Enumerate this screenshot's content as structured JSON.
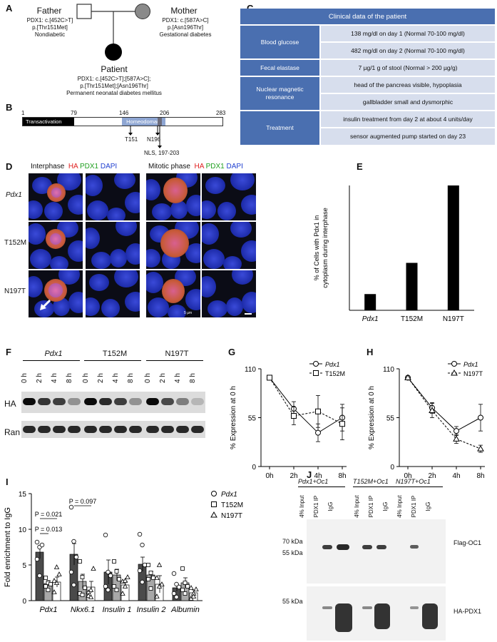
{
  "panelA": {
    "label": "A",
    "father": {
      "title": "Father",
      "lines": [
        "PDX1: c.[452C>T]",
        "p.[Thr151Met]",
        "Nondiabetic"
      ]
    },
    "mother": {
      "title": "Mother",
      "lines": [
        "PDX1: c.[587A>C]",
        "p.[Asn196Thr]",
        "Gestational diabetes"
      ]
    },
    "patient": {
      "title": "Patient",
      "lines": [
        "PDX1: c.[452C>T];[587A>C];",
        "p.[Thr151Met];[Asn196Thr]",
        "Permanent neonatal diabetes mellitus"
      ]
    }
  },
  "panelB": {
    "label": "B",
    "ticks": [
      "1",
      "79",
      "146",
      "206",
      "283"
    ],
    "domain1": "Transactivation",
    "domain2": "Homeodomain",
    "mut1": "T151",
    "mut2": "N196",
    "nls": "NLS, 197-203"
  },
  "panelC": {
    "label": "C",
    "title": "Clinical data of the patient",
    "rows": [
      {
        "label": "Blood glucose",
        "values": [
          "138 mg/dl on day 1 (Normal 70-100 mg/dl)",
          "482 mg/dl on day 2 (Normal 70-100 mg/dl)"
        ]
      },
      {
        "label": "Fecal elastase",
        "values": [
          "7 µg/1 g of stool (Normal > 200 µg/g)"
        ]
      },
      {
        "label": "Nuclear magnetic resonance",
        "values": [
          "head of the pancreas visible, hypoplasia",
          "gallbladder small and dysmorphic"
        ]
      },
      {
        "label": "Treatment",
        "values": [
          "insulin treatment from day 2 at about 4 units/day",
          "sensor augmented pump started on day 23"
        ]
      }
    ]
  },
  "panelD": {
    "label": "D",
    "interphase": "Interphase",
    "mitotic": "Mitotic phase",
    "ha": "HA",
    "pdx1": "PDX1",
    "dapi": "DAPI",
    "rows": [
      "Pdx1",
      "T152M",
      "N197T"
    ],
    "scale": "5 µm"
  },
  "panelE": {
    "label": "E"
  },
  "panelF": {
    "label": "F",
    "groups": [
      "Pdx1",
      "T152M",
      "N197T"
    ],
    "times": [
      "0 h",
      "2 h",
      "4 h",
      "8 h"
    ],
    "bands": [
      "HA",
      "Ran"
    ]
  },
  "panelG": {
    "label": "G"
  },
  "panelH": {
    "label": "H"
  },
  "panelI": {
    "label": "I",
    "p1": "P = 0.021",
    "p2": "P = 0.013",
    "p3": "P = 0.097"
  },
  "panelJ": {
    "label": "J",
    "groups": [
      "Pdx1+Oc1",
      "T152M+Oc1",
      "N197T+Oc1"
    ],
    "lanes": [
      "4% Input",
      "PDX1 IP",
      "IgG"
    ],
    "mw1": [
      "70 kDa",
      "55 kDa"
    ],
    "mw2": "55 kDa",
    "blot1": "Flag-OC1",
    "blot2": "HA-PDX1"
  },
  "chart_data": [
    {
      "type": "bar",
      "panel": "E",
      "categories": [
        "Pdx1",
        "T152M",
        "N197T"
      ],
      "values": [
        6.5,
        19,
        50
      ],
      "ylabel": "% of Cells with Pdx1 in cytoplasm during interphase",
      "ylim": [
        0,
        50
      ],
      "color": "#000000"
    },
    {
      "type": "line",
      "panel": "G",
      "x": [
        "0h",
        "2h",
        "4h",
        "8h"
      ],
      "series": [
        {
          "name": "Pdx1",
          "values": [
            100,
            65,
            38,
            55
          ],
          "err": [
            0,
            8,
            10,
            15
          ]
        },
        {
          "name": "T152M",
          "values": [
            100,
            57,
            62,
            48
          ],
          "err": [
            0,
            10,
            18,
            18
          ]
        }
      ],
      "ylabel": "% Expression at 0 h",
      "yticks": [
        "0",
        "55",
        "110"
      ],
      "ylim": [
        0,
        110
      ]
    },
    {
      "type": "line",
      "panel": "H",
      "x": [
        "0h",
        "2h",
        "4h",
        "8h"
      ],
      "series": [
        {
          "name": "Pdx1",
          "values": [
            100,
            66,
            40,
            55
          ],
          "err": [
            0,
            6,
            5,
            15
          ]
        },
        {
          "name": "N197T",
          "values": [
            100,
            63,
            31,
            20
          ],
          "err": [
            0,
            8,
            5,
            4
          ]
        }
      ],
      "ylabel": "% Expression at 0 h",
      "yticks": [
        "0",
        "55",
        "110"
      ],
      "ylim": [
        0,
        110
      ]
    },
    {
      "type": "bar",
      "panel": "I",
      "categories": [
        "Pdx1",
        "Nkx6.1",
        "Insulin 1",
        "Insulin 2",
        "Albumin"
      ],
      "series": [
        {
          "name": "Pdx1",
          "values": [
            6.8,
            6.5,
            4.0,
            5.1,
            1.8
          ],
          "err": [
            0.9,
            1.5,
            1.7,
            1.0,
            0.5
          ],
          "points": [
            [
              5.8,
              7.5,
              7.8,
              8.2,
              3.5
            ],
            [
              13.1,
              8.3,
              6.1,
              4.0,
              2.2
            ],
            [
              9.2,
              4.0,
              3.5,
              2.0,
              1.5
            ],
            [
              9.3,
              7.8,
              5.0,
              4.2,
              2.6
            ],
            [
              3.8,
              2.3,
              1.9,
              1.0,
              0.5
            ]
          ]
        },
        {
          "name": "T152M",
          "values": [
            2.4,
            2.7,
            3.6,
            3.6,
            2.5
          ],
          "err": [
            0.4,
            1.0,
            0.8,
            0.5,
            0.7
          ],
          "points": [
            [
              2.0,
              2.5,
              2.3,
              3.2,
              1.5
            ],
            [
              5.5,
              3.3,
              1.8,
              1.0,
              0.8
            ],
            [
              5.5,
              4.1,
              3.0,
              2.0,
              1.5
            ],
            [
              5.0,
              3.9,
              3.2,
              3.0,
              1.7
            ],
            [
              4.5,
              2.5,
              2.0,
              1.5,
              1.0
            ]
          ]
        },
        {
          "name": "N197T",
          "values": [
            2.6,
            1.9,
            2.2,
            2.3,
            1.1
          ],
          "err": [
            0.7,
            0.8,
            0.5,
            1.2,
            0.4
          ],
          "points": [
            [
              1.2,
              2.5,
              3.7,
              2.8,
              4.7
            ],
            [
              1.2,
              1.5,
              4.5,
              0.7,
              0.5
            ],
            [
              1.0,
              2.0,
              3.3,
              2.7,
              2.8
            ],
            [
              0.6,
              2.0,
              2.3,
              3.2,
              5.0
            ],
            [
              0.3,
              1.0,
              1.6,
              1.8,
              0.6
            ]
          ]
        }
      ],
      "ylabel": "Fold enrichment to IgG",
      "yticks": [
        "0",
        "5",
        "10",
        "15"
      ],
      "ylim": [
        0,
        15
      ]
    }
  ]
}
